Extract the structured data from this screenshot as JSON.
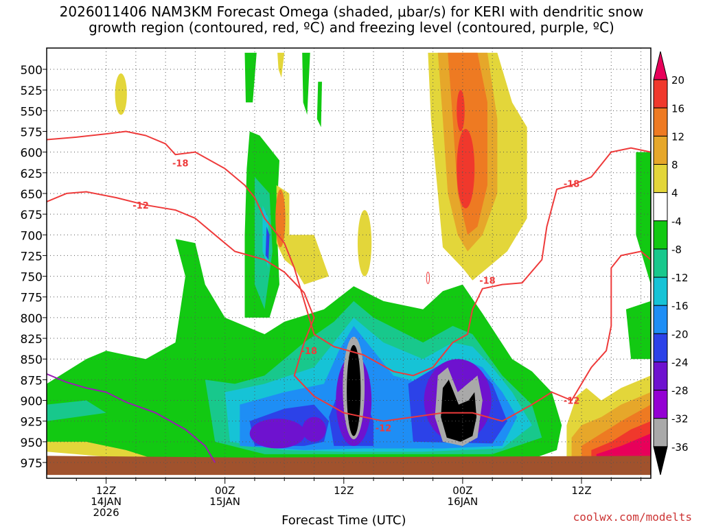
{
  "title_line1": "2026011406 NAM3KM Forecast Omega (shaded, μbar/s) for KERI with dendritic snow",
  "title_line2": "growth region (contoured, red, ºC) and freezing level (contoured, purple, ºC)",
  "watermark": "coolwx.com/modelts",
  "chart_data": {
    "type": "heatmap",
    "xlabel": "Forecast Time (UTC)",
    "y_levels": [
      "500",
      "525",
      "550",
      "575",
      "600",
      "625",
      "650",
      "675",
      "700",
      "725",
      "750",
      "775",
      "800",
      "825",
      "850",
      "875",
      "900",
      "925",
      "950",
      "975"
    ],
    "x_ticks": [
      {
        "h": 6,
        "lines": [
          "12Z",
          "14JAN",
          "2026"
        ]
      },
      {
        "h": 18,
        "lines": [
          "00Z",
          "15JAN"
        ]
      },
      {
        "h": 30,
        "lines": [
          "12Z"
        ]
      },
      {
        "h": 42,
        "lines": [
          "00Z",
          "16JAN"
        ]
      },
      {
        "h": 54,
        "lines": [
          "12Z"
        ]
      }
    ],
    "x_range_hours": [
      0,
      61
    ],
    "colorbar": {
      "labels": [
        "20",
        "16",
        "12",
        "8",
        "4",
        "-4",
        "-8",
        "-12",
        "-16",
        "-20",
        "-24",
        "-28",
        "-32",
        "-36"
      ],
      "colors": [
        "#e8005a",
        "#f0382c",
        "#ee7a22",
        "#e6a72a",
        "#e3d63a",
        "#ffffff",
        "#12c912",
        "#18c88c",
        "#16c3d6",
        "#1e8ef5",
        "#2c42e8",
        "#6e12cf",
        "#9400d3",
        "#a9a9a9",
        "#000000"
      ]
    },
    "contour_labels": {
      "red": [
        {
          "text": "-18",
          "h": 13.5,
          "p": 613
        },
        {
          "text": "-12",
          "h": 9.5,
          "p": 664
        },
        {
          "text": "-18",
          "h": 26.5,
          "p": 840
        },
        {
          "text": "-12",
          "h": 34,
          "p": 933
        },
        {
          "text": "-18",
          "h": 44.5,
          "p": 755
        },
        {
          "text": "-18",
          "h": 53,
          "p": 638
        },
        {
          "text": "-12",
          "h": 53,
          "p": 900
        }
      ]
    }
  }
}
